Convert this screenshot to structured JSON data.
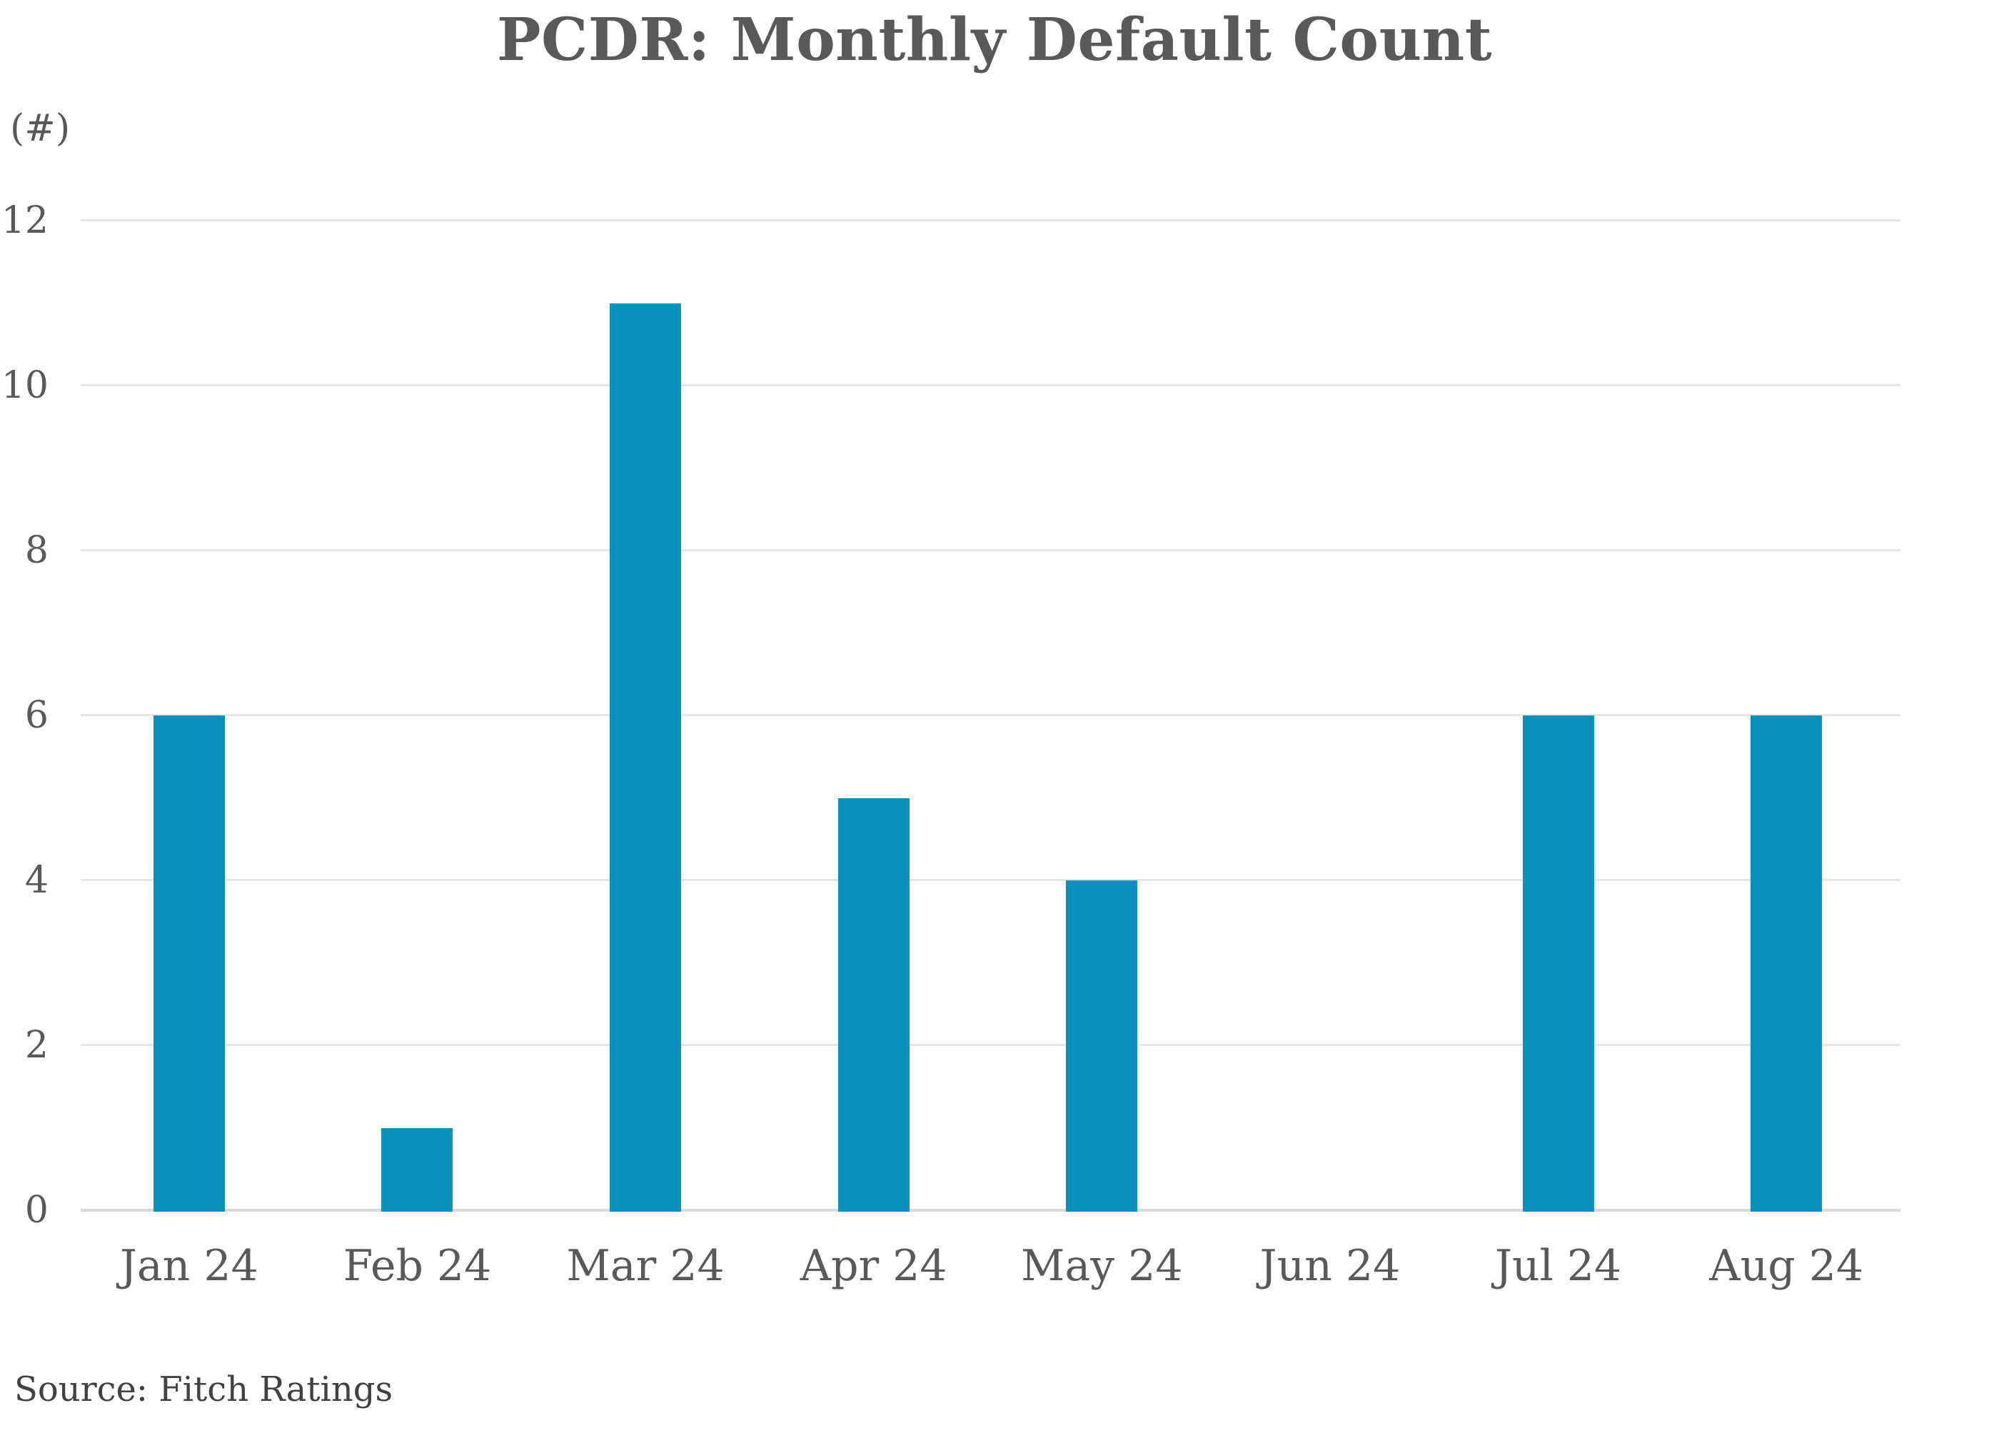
{
  "chart": {
    "title": "PCDR: Monthly Default Count",
    "unit_label": "(#)",
    "source": "Source: Fitch Ratings"
  },
  "chart_data": {
    "type": "bar",
    "title": "PCDR: Monthly Default Count",
    "subtitle": "",
    "unit_label": "(#)",
    "source": "Source: Fitch Ratings",
    "categories": [
      "Jan 24",
      "Feb 24",
      "Mar 24",
      "Apr 24",
      "May 24",
      "Jun 24",
      "Jul 24",
      "Aug 24"
    ],
    "values": [
      6,
      1,
      11,
      5,
      4,
      0,
      6,
      6
    ],
    "xlabel": "",
    "ylabel": "(#)",
    "ylim": [
      0,
      12
    ],
    "yticks": [
      0,
      2,
      4,
      6,
      8,
      10,
      12
    ],
    "grid": true,
    "legend": false,
    "bar_color": "#0891bc",
    "text_color": "#58595b",
    "source_text_color": "#414042",
    "gridline_color": "#e6e6e6",
    "axis_line_color": "#d9d9d9"
  }
}
